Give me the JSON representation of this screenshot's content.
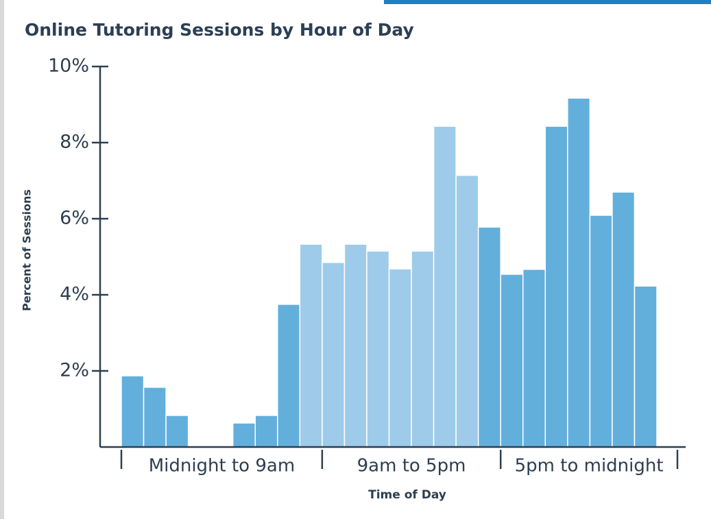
{
  "chart_data": {
    "type": "bar",
    "title": "Online Tutoring Sessions by Hour of Day",
    "y_label": "Percent of Sessions",
    "x_label": "Time of Day",
    "categories": [
      null,
      null,
      null,
      null,
      null,
      null,
      null,
      null,
      null,
      null,
      null,
      null,
      null,
      null,
      null,
      null,
      null,
      null,
      null,
      null,
      null,
      null,
      null,
      null
    ],
    "values": [
      1.87,
      1.57,
      0.83,
      0,
      0,
      0.63,
      0.83,
      3.75,
      5.33,
      4.85,
      5.33,
      5.15,
      4.68,
      5.15,
      8.43,
      7.14,
      5.78,
      4.54,
      4.67,
      8.43,
      9.17,
      6.09,
      6.7,
      4.23
    ],
    "colors": [
      "#63afdc",
      "#63afdc",
      "#63afdc",
      "#63afdc",
      "#63afdc",
      "#63afdc",
      "#63afdc",
      "#63afdc",
      "#9ecbe9",
      "#9ecbe9",
      "#9ecbe9",
      "#9ecbe9",
      "#9ecbe9",
      "#9ecbe9",
      "#9ecbe9",
      "#9ecbe9",
      "#63afdc",
      "#63afdc",
      "#63afdc",
      "#63afdc",
      "#63afdc",
      "#63afdc",
      "#63afdc",
      "#63afdc"
    ],
    "ylim": [
      0,
      10
    ],
    "yticks": [
      {
        "value": 2,
        "label": "2%"
      },
      {
        "value": 4,
        "label": "4%"
      },
      {
        "value": 6,
        "label": "6%"
      },
      {
        "value": 8,
        "label": "8%"
      },
      {
        "value": 10,
        "label": "10%"
      }
    ],
    "xlim": [
      0,
      24
    ],
    "xticks": [
      0,
      9,
      17,
      24
    ],
    "x_groups": [
      "Midnight to 9am",
      "9am to 5pm",
      "5pm to midnight"
    ]
  }
}
